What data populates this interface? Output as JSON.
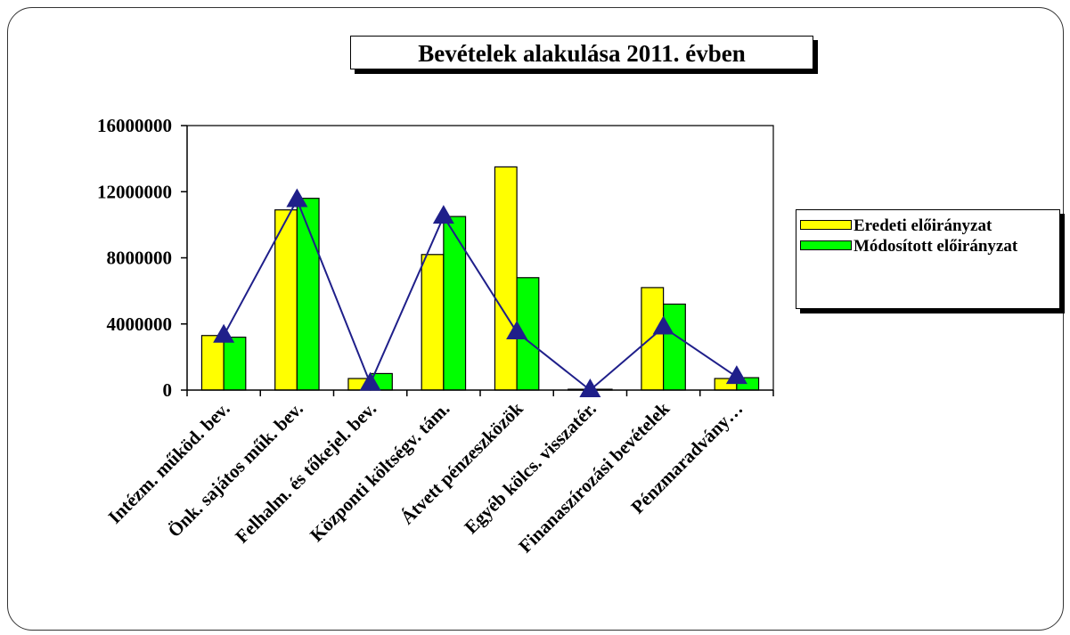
{
  "chart_data": {
    "type": "bar",
    "title": "Bevételek alakulása 2011. évben",
    "categories": [
      "Intézm. működ. bev.",
      "Önk. sajátos műk. bev.",
      "Felhalm. és tőkejel. bev.",
      "Központi költségv. tám.",
      "Átvett pénzeszközök",
      "Egyéb kölcs. visszatér.",
      "Finanaszírozási bevételek",
      "Pénzmaradvány…"
    ],
    "series": [
      {
        "name": "Eredeti előirányzat",
        "color": "#ffff00",
        "values": [
          3300000,
          10900000,
          700000,
          8200000,
          13500000,
          50000,
          6200000,
          700000
        ]
      },
      {
        "name": "Módosított előirányzat",
        "color": "#00ff00",
        "values": [
          3200000,
          11600000,
          1000000,
          10500000,
          6800000,
          50000,
          5200000,
          750000
        ]
      },
      {
        "type": "line",
        "color": "#1f1f8a",
        "values": [
          3300000,
          11500000,
          400000,
          10500000,
          3500000,
          0,
          3800000,
          800000
        ]
      }
    ],
    "ylim": [
      0,
      16000000
    ],
    "yticks": [
      0,
      4000000,
      8000000,
      12000000,
      16000000
    ]
  }
}
